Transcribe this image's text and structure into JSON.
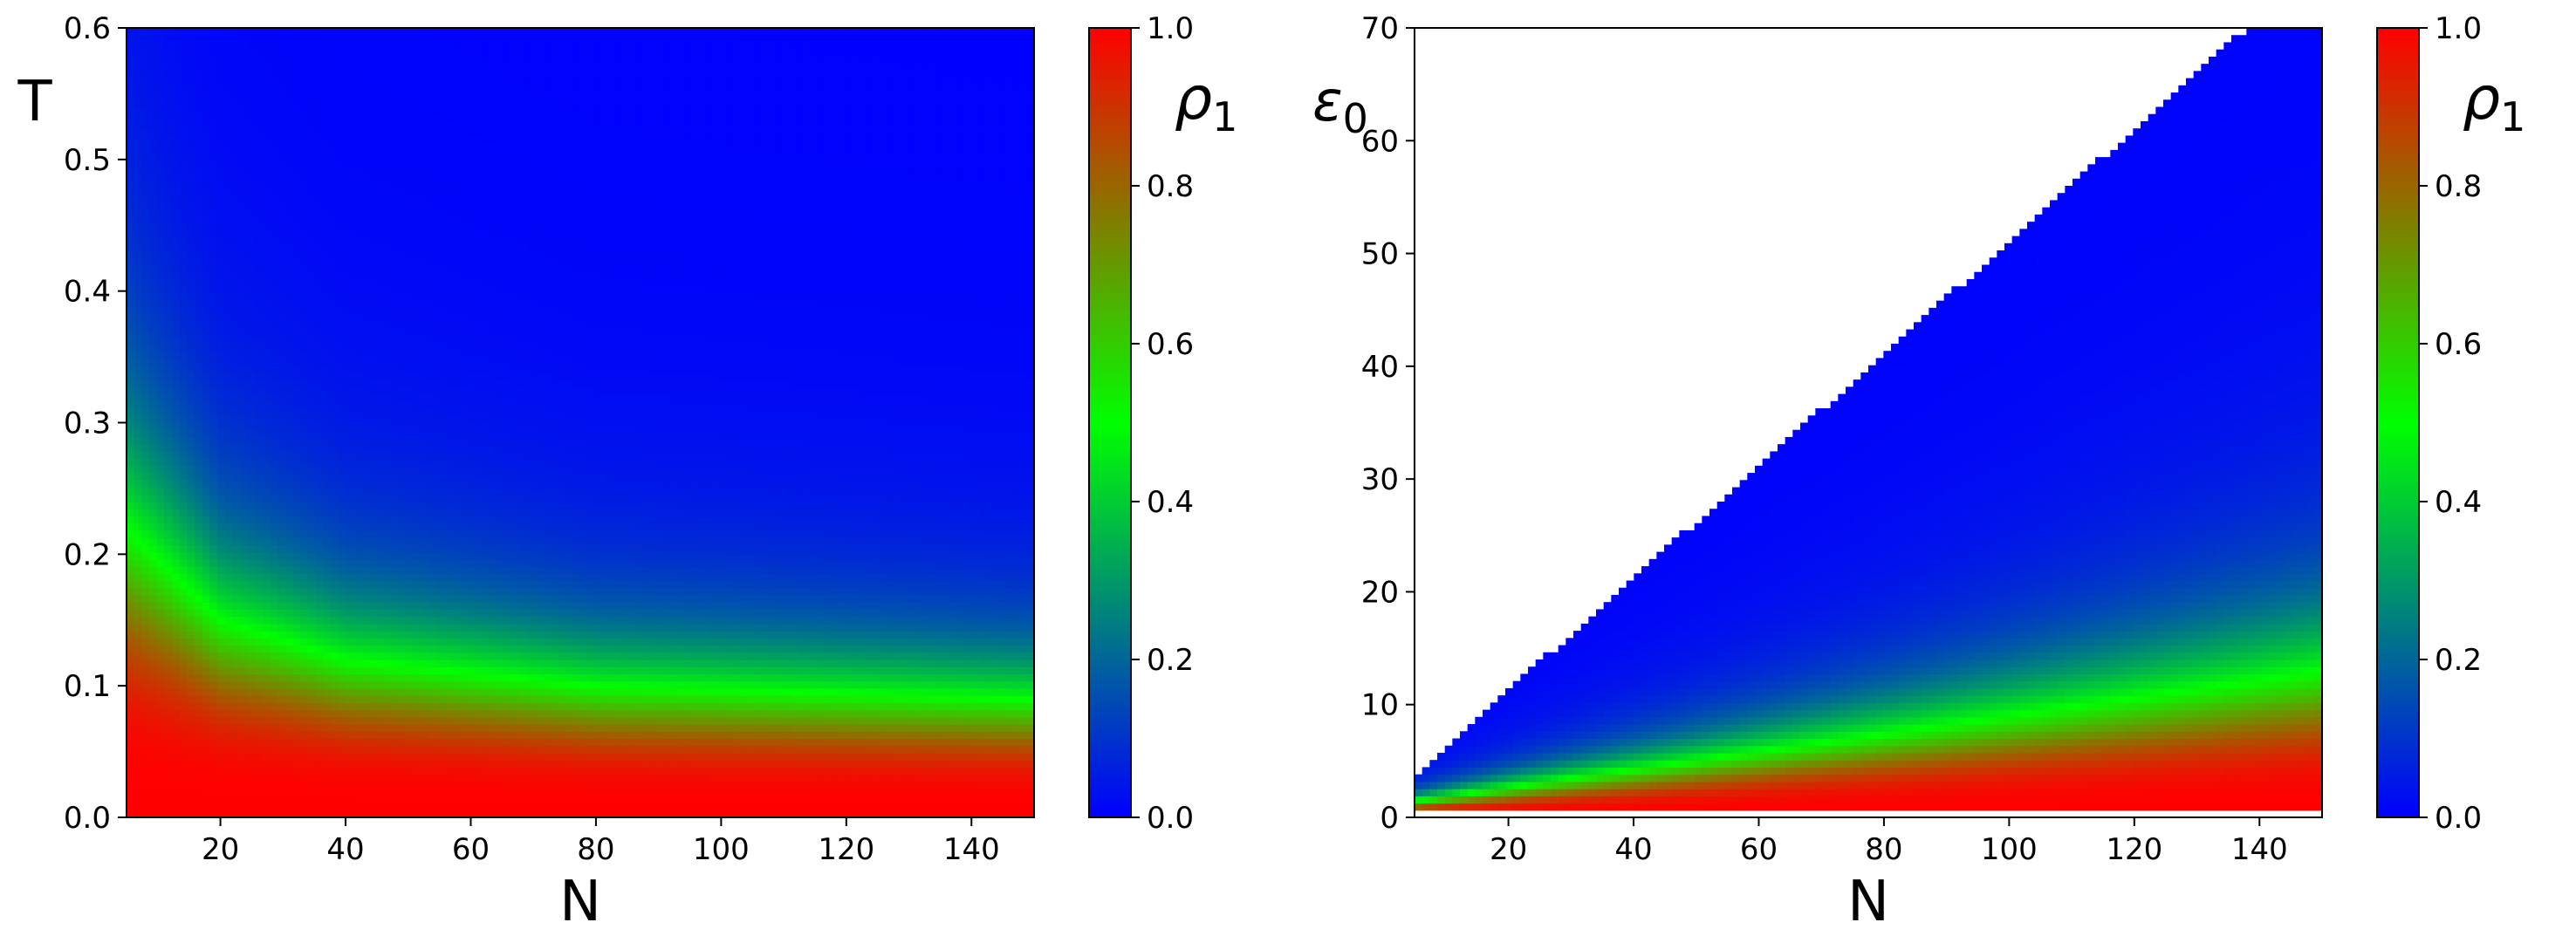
{
  "chart_data": [
    {
      "type": "heatmap",
      "id": "left",
      "xlabel": "N",
      "ylabel": "T",
      "xlim": [
        5,
        150
      ],
      "ylim": [
        0,
        0.6
      ],
      "xticks": [
        20,
        40,
        60,
        80,
        100,
        120,
        140
      ],
      "yticks": [
        0.0,
        0.1,
        0.2,
        0.3,
        0.4,
        0.5,
        0.6
      ],
      "xtick_labels": [
        "20",
        "40",
        "60",
        "80",
        "100",
        "120",
        "140"
      ],
      "ytick_labels": [
        "0.0",
        "0.1",
        "0.2",
        "0.3",
        "0.4",
        "0.5",
        "0.6"
      ],
      "colorbar": {
        "label": "ρ",
        "label_subscript": "1",
        "range": [
          0,
          1
        ],
        "ticks": [
          "0.0",
          "0.2",
          "0.4",
          "0.6",
          "0.8",
          "1.0"
        ],
        "colors": [
          "#0000ff",
          "#00ff00",
          "#ff0000"
        ]
      },
      "description_values": {
        "rho1_transition_T_at_N": [
          [
            5,
            0.22
          ],
          [
            20,
            0.15
          ],
          [
            40,
            0.12
          ],
          [
            80,
            0.1
          ],
          [
            150,
            0.09
          ]
        ]
      }
    },
    {
      "type": "heatmap",
      "id": "right",
      "xlabel": "N",
      "ylabel": "ε",
      "ylabel_subscript": "0",
      "xlim": [
        5,
        150
      ],
      "ylim": [
        0,
        70
      ],
      "xticks": [
        20,
        40,
        60,
        80,
        100,
        120,
        140
      ],
      "yticks": [
        0,
        10,
        20,
        30,
        40,
        50,
        60,
        70
      ],
      "xtick_labels": [
        "20",
        "40",
        "60",
        "80",
        "100",
        "120",
        "140"
      ],
      "ytick_labels": [
        "0",
        "10",
        "20",
        "30",
        "40",
        "50",
        "60",
        "70"
      ],
      "colorbar": {
        "label": "ρ",
        "label_subscript": "1",
        "range": [
          0,
          1
        ],
        "ticks": [
          "0.0",
          "0.2",
          "0.4",
          "0.6",
          "0.8",
          "1.0"
        ],
        "colors": [
          "#0000ff",
          "#00ff00",
          "#ff0000"
        ]
      },
      "description_values": {
        "upper_boundary_eps0": [
          [
            5,
            3.8
          ],
          [
            138,
            70
          ]
        ],
        "rho1_transition_eps0_at_N": [
          [
            5,
            1.5
          ],
          [
            150,
            13
          ]
        ]
      }
    }
  ]
}
